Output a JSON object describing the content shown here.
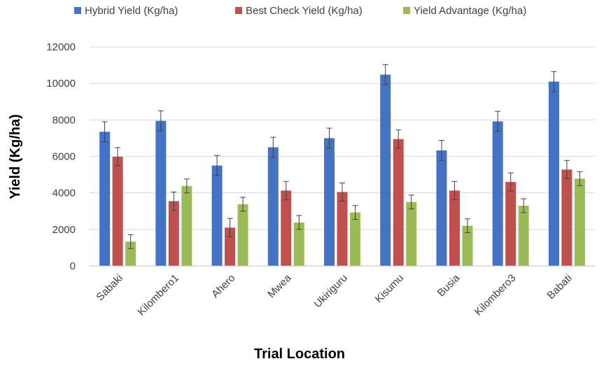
{
  "chart_data": {
    "type": "bar",
    "title": "",
    "xlabel": "Trial Location",
    "ylabel": "Yield (Kg/ha)",
    "ylim": [
      0,
      12000
    ],
    "yticks": [
      0,
      2000,
      4000,
      6000,
      8000,
      10000,
      12000
    ],
    "grid": true,
    "legend_position": "top",
    "error_bars": true,
    "categories": [
      "Sabaki",
      "Kilombero1",
      "Ahero",
      "Mwea",
      "Ukiriguru",
      "Kisumu",
      "Busia",
      "Kilombero3",
      "Babati"
    ],
    "series": [
      {
        "name": "Hybrid Yield (Kg/ha)",
        "color": "#4472C4",
        "values": [
          7350,
          7950,
          5500,
          6500,
          7000,
          10480,
          6330,
          7920,
          10100
        ],
        "errors": [
          550,
          550,
          550,
          550,
          550,
          550,
          550,
          550,
          550
        ]
      },
      {
        "name": "Best Check Yield (Kg/ha)",
        "color": "#C0504D",
        "values": [
          5980,
          3550,
          2100,
          4130,
          4050,
          6950,
          4130,
          4600,
          5280
        ],
        "errors": [
          500,
          500,
          500,
          500,
          500,
          500,
          500,
          500,
          500
        ]
      },
      {
        "name": "Yield Advantage (Kg/ha)",
        "color": "#9BBB59",
        "values": [
          1330,
          4380,
          3380,
          2380,
          2930,
          3500,
          2200,
          3300,
          4780
        ],
        "errors": [
          380,
          380,
          380,
          380,
          380,
          380,
          380,
          380,
          380
        ]
      }
    ]
  }
}
